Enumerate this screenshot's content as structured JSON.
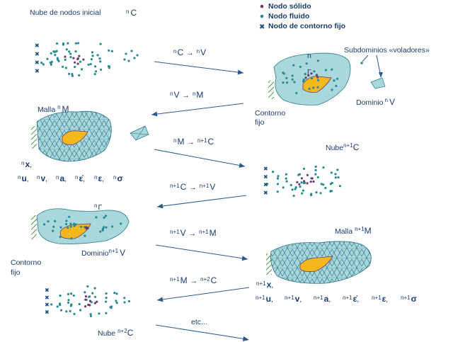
{
  "legend": {
    "solid": "Nodo sólido",
    "fluid": "Nodo fluido",
    "contour": "Nodo de contorno fijo"
  },
  "colors": {
    "solid": "#6b3a6e",
    "fluid": "#2a8a92",
    "contour": "#1d4e7e",
    "fluid_region": "#a8d8dc",
    "solid_region": "#f5b81c",
    "text": "#1a3c6e",
    "hatch": "#4a9a4a"
  },
  "cloud_initial": {
    "title": "Nube de nodos inicial",
    "sym_pre": "n",
    "sym": "C"
  },
  "domain_n": {
    "top": "n",
    "gamma": "Γ",
    "sub": "Subdominios «voladores»",
    "dom_label": "Dominio",
    "dom_pre": "n",
    "dom_sym": "V",
    "contour1": "Contorno",
    "contour2": "fijo"
  },
  "mesh_n": {
    "label": "Malla",
    "pre": "n",
    "sym": "M",
    "vars_line1": [
      "n",
      "x",
      ","
    ],
    "vars_line2": [
      {
        "pre": "n",
        "sym": "u"
      },
      {
        "pre": "n",
        "sym": "v"
      },
      {
        "pre": "n",
        "sym": "a"
      },
      {
        "pre": "n",
        "sym": "ε̇"
      },
      {
        "pre": "n",
        "sym": "ε"
      },
      {
        "pre": "n",
        "sym": "σ"
      }
    ]
  },
  "cloud_n1": {
    "label": "Nube",
    "sup": "n+1",
    "sym": "C"
  },
  "domain_n1": {
    "gamma_pre": "n",
    "gamma": "Γ",
    "dom_label": "Dominio",
    "dom_pre": "n+1",
    "dom_sym": "V",
    "contour1": "Contorno",
    "contour2": "fijo"
  },
  "mesh_n1": {
    "label": "Malla",
    "sup": "n+1",
    "sym": "M",
    "x_pre": "n+1",
    "x_sym": "x",
    "vars": [
      {
        "pre": "n+1",
        "sym": "u"
      },
      {
        "pre": "n+1",
        "sym": "v"
      },
      {
        "pre": "n+1",
        "sym": "a"
      },
      {
        "pre": "n+1",
        "sym": "ε̇"
      },
      {
        "pre": "n+1",
        "sym": "ε"
      },
      {
        "pre": "n+1",
        "sym": "σ"
      }
    ]
  },
  "cloud_n2": {
    "label": "Nube",
    "sup": "n+2",
    "sym": "C"
  },
  "transitions": [
    {
      "from_pre": "n",
      "from": "C",
      "to_pre": "n",
      "to": "V"
    },
    {
      "from_pre": "n",
      "from": "V",
      "to_pre": "n",
      "to": "M"
    },
    {
      "from_pre": "n",
      "from": "M",
      "to_pre": "n+1",
      "to": "C"
    },
    {
      "from_pre": "n+1",
      "from": "C",
      "to_pre": "n+1",
      "to": "V"
    },
    {
      "from_pre": "n+1",
      "from": "V",
      "to_pre": "n+1",
      "to": "M"
    },
    {
      "from_pre": "n+1",
      "from": "M",
      "to_pre": "n+2",
      "to": "C"
    }
  ],
  "etc": "etc..."
}
